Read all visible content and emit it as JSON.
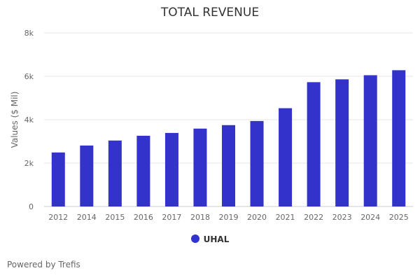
{
  "chart_data": {
    "type": "bar",
    "title": "TOTAL REVENUE",
    "ylabel": "Values ($ Mil)",
    "xlabel": "",
    "categories": [
      "2012",
      "2014",
      "2015",
      "2016",
      "2017",
      "2018",
      "2019",
      "2020",
      "2021",
      "2022",
      "2023",
      "2024",
      "2025"
    ],
    "series": [
      {
        "name": "UHAL",
        "values": [
          2490,
          2810,
          3040,
          3260,
          3390,
          3590,
          3750,
          3940,
          4530,
          5730,
          5860,
          6050,
          6280
        ],
        "color": "#3333cc"
      }
    ],
    "ylim": [
      0,
      8000
    ],
    "yticks": [
      0,
      2000,
      4000,
      6000,
      8000
    ],
    "ytick_labels": [
      "0",
      "2k",
      "4k",
      "6k",
      "8k"
    ],
    "grid": true,
    "legend_position": "bottom"
  },
  "footer": "Powered by Trefis"
}
